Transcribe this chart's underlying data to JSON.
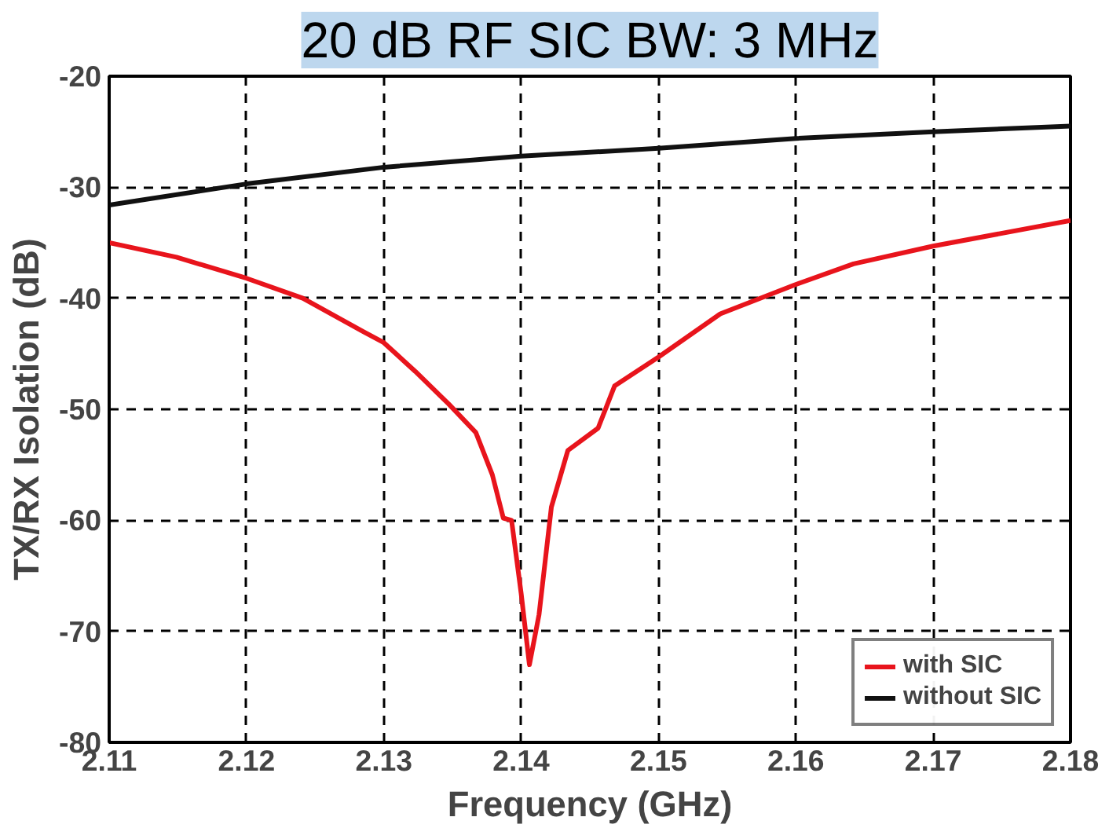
{
  "chart_data": {
    "type": "line",
    "title": "20 dB RF SIC BW: 3 MHz",
    "xlabel": "Frequency (GHz)",
    "ylabel": "TX/RX Isolation (dB)",
    "xlim": [
      2.11,
      2.18
    ],
    "xticks": [
      2.11,
      2.12,
      2.13,
      2.14,
      2.15,
      2.16,
      2.17,
      2.18
    ],
    "ylim": [
      -80,
      -20
    ],
    "yticks": [
      -80,
      -70,
      -60,
      -50,
      -40,
      -30,
      -20
    ],
    "grid": true,
    "legend": "bottom right",
    "line_style": "solid",
    "series": [
      {
        "name": "with SIC",
        "color": "#e8141c",
        "x": [
          2.11,
          2.1149,
          2.12,
          2.1241,
          2.1285,
          2.13,
          2.1323,
          2.1347,
          2.1367,
          2.1379,
          2.1387,
          2.1393,
          2.14,
          2.1406,
          2.1413,
          2.1422,
          2.1434,
          2.1456,
          2.1468,
          2.15,
          2.1545,
          2.1599,
          2.1642,
          2.17,
          2.18
        ],
        "values": [
          -35.0,
          -36.3,
          -38.2,
          -40.0,
          -43.0,
          -44.0,
          -46.6,
          -49.5,
          -52.1,
          -55.9,
          -59.8,
          -60.0,
          -66.6,
          -73.0,
          -68.5,
          -58.8,
          -53.7,
          -51.7,
          -47.9,
          -45.3,
          -41.4,
          -38.8,
          -36.9,
          -35.3,
          -33.0
        ]
      },
      {
        "name": "without SIC",
        "color": "#111111",
        "x": [
          2.11,
          2.12,
          2.13,
          2.14,
          2.15,
          2.16,
          2.17,
          2.18
        ],
        "values": [
          -31.6,
          -29.7,
          -28.2,
          -27.2,
          -26.5,
          -25.6,
          -25.0,
          -24.5
        ]
      }
    ]
  }
}
